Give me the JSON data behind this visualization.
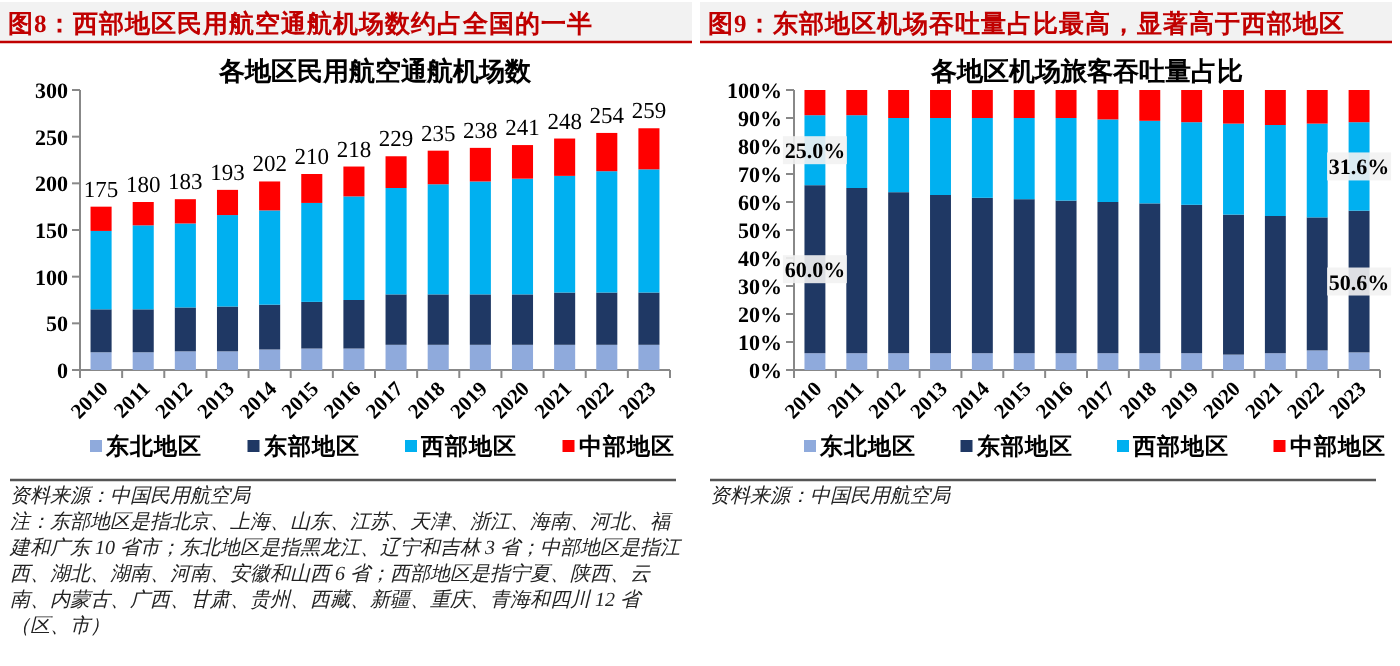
{
  "chart_data": [
    {
      "type": "bar",
      "stacked": true,
      "title": "图8：西部地区民用航空通航机场数约占全国的一半",
      "subtitle": "各地区民用航空通航机场数",
      "categories": [
        "2010",
        "2011",
        "2012",
        "2013",
        "2014",
        "2015",
        "2016",
        "2017",
        "2018",
        "2019",
        "2020",
        "2021",
        "2022",
        "2023"
      ],
      "series": [
        {
          "name": "东北地区",
          "color": "#8faadc",
          "values": [
            19,
            19,
            20,
            20,
            22,
            23,
            23,
            27,
            27,
            27,
            27,
            27,
            27,
            27
          ]
        },
        {
          "name": "东部地区",
          "color": "#1f3864",
          "values": [
            46,
            46,
            47,
            48,
            48,
            50,
            52,
            54,
            54,
            54,
            54,
            56,
            56,
            56
          ]
        },
        {
          "name": "西部地区",
          "color": "#00b0f0",
          "values": [
            84,
            90,
            90,
            98,
            101,
            106,
            111,
            114,
            118,
            121,
            124,
            125,
            130,
            132
          ]
        },
        {
          "name": "中部地区",
          "color": "#ff0000",
          "values": [
            26,
            25,
            26,
            27,
            31,
            31,
            32,
            34,
            36,
            36,
            36,
            40,
            41,
            44
          ]
        }
      ],
      "totals": [
        "175",
        "180",
        "183",
        "193",
        "202",
        "210",
        "218",
        "229",
        "235",
        "238",
        "241",
        "248",
        "254",
        "259"
      ],
      "ylim": [
        0,
        300
      ],
      "yticks": [
        0,
        50,
        100,
        150,
        200,
        250,
        300
      ],
      "legend": "bottom",
      "annotations": [
        "资料来源：中国民用航空局",
        "注：东部地区是指北京、上海、山东、江苏、天津、浙江、海南、河北、福建和广东 10 省市；东北地区是指黑龙江、辽宁和吉林 3 省；中部地区是指江西、湖北、湖南、河南、安徽和山西 6 省；西部地区是指宁夏、陕西、云南、内蒙古、广西、甘肃、贵州、西藏、新疆、重庆、青海和四川 12 省（区、市）"
      ]
    },
    {
      "type": "bar",
      "stacked": true,
      "title": "图9：东部地区机场吞吐量占比最高，显著高于西部地区",
      "subtitle": "各地区机场旅客吞吐量占比",
      "categories": [
        "2010",
        "2011",
        "2012",
        "2013",
        "2014",
        "2015",
        "2016",
        "2017",
        "2018",
        "2019",
        "2020",
        "2021",
        "2022",
        "2023"
      ],
      "series": [
        {
          "name": "东北地区",
          "color": "#8faadc",
          "values": [
            6,
            6,
            6,
            6,
            6,
            6,
            6,
            6,
            6,
            6,
            5.5,
            6,
            7,
            6.3
          ]
        },
        {
          "name": "东部地区",
          "color": "#1f3864",
          "values": [
            60.0,
            59,
            57.5,
            56.5,
            55.5,
            55,
            54.5,
            54,
            53.5,
            53,
            50,
            49,
            47.5,
            50.6
          ],
          "value_labels": [
            "60.0%",
            null,
            null,
            null,
            null,
            null,
            null,
            null,
            null,
            null,
            null,
            null,
            null,
            "50.6%"
          ]
        },
        {
          "name": "西部地区",
          "color": "#00b0f0",
          "values": [
            25.0,
            26,
            26.5,
            27.5,
            28.5,
            29,
            29.5,
            29.5,
            29.5,
            29.5,
            32.5,
            32.5,
            33.5,
            31.6
          ],
          "value_labels": [
            "25.0%",
            null,
            null,
            null,
            null,
            null,
            null,
            null,
            null,
            null,
            null,
            null,
            null,
            "31.6%"
          ]
        },
        {
          "name": "中部地区",
          "color": "#ff0000",
          "values": [
            9,
            9,
            10,
            10,
            10,
            10,
            10,
            10.5,
            11,
            11.5,
            12,
            12.5,
            12,
            11.5
          ]
        }
      ],
      "ylim": [
        0,
        100
      ],
      "yticks": [
        {
          "value": 0,
          "label": "0%"
        },
        {
          "value": 10,
          "label": "10%"
        },
        {
          "value": 20,
          "label": "20%"
        },
        {
          "value": 30,
          "label": "30%"
        },
        {
          "value": 40,
          "label": "40%"
        },
        {
          "value": 50,
          "label": "50%"
        },
        {
          "value": 60,
          "label": "60%"
        },
        {
          "value": 70,
          "label": "70%"
        },
        {
          "value": 80,
          "label": "80%"
        },
        {
          "value": 90,
          "label": "90%"
        },
        {
          "value": 100,
          "label": "100%"
        }
      ],
      "legend": "bottom",
      "annotations": [
        "资料来源：中国民用航空局"
      ]
    }
  ]
}
